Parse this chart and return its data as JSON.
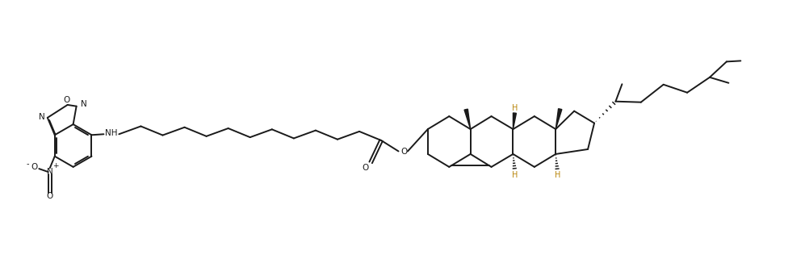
{
  "bg_color": "#ffffff",
  "line_color": "#1a1a1a",
  "gold_color": "#b8860b",
  "figsize": [
    9.97,
    3.47
  ],
  "dpi": 100,
  "xlim": [
    0,
    9.97
  ],
  "ylim": [
    0,
    3.47
  ]
}
